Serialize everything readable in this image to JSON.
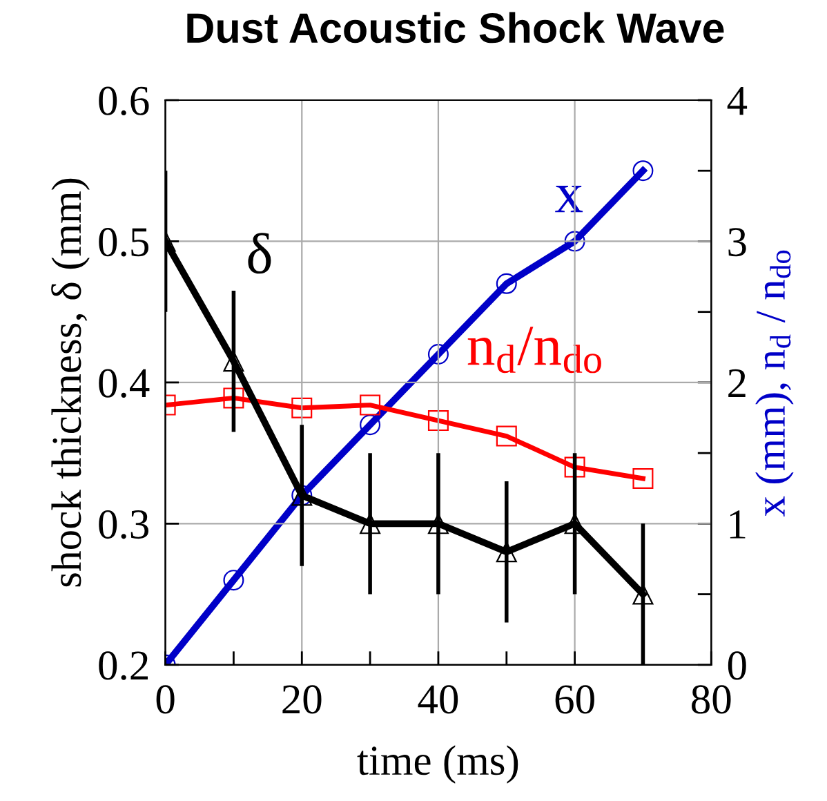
{
  "chart_data": {
    "type": "line",
    "title": "Dust Acoustic Shock Wave",
    "xlabel": "time (ms)",
    "ylabel": "shock thickness, δ (mm)",
    "y2label": "x (mm), n$_{d}$ / n$_{do}$",
    "x": [
      0,
      10,
      20,
      30,
      40,
      50,
      60,
      70
    ],
    "series": [
      {
        "name": "δ",
        "color": "#000000",
        "marker": "triangle",
        "values": [
          0.5,
          0.415,
          0.32,
          0.3,
          0.3,
          0.28,
          0.3,
          0.25
        ],
        "errors": [
          0.05,
          0.05,
          0.05,
          0.05,
          0.05,
          0.05,
          0.05,
          0.05
        ]
      },
      {
        "name": "x",
        "color": "#0000c8",
        "marker": "circle",
        "axis": "y2",
        "values": [
          0,
          0.6,
          1.2,
          1.7,
          2.2,
          2.7,
          3.0,
          3.5
        ]
      },
      {
        "name": "n$_{d}$/n$_{do}$",
        "color": "#ff0000",
        "marker": "square",
        "axis": "y2",
        "values": [
          1.84,
          1.89,
          1.82,
          1.84,
          1.73,
          1.62,
          1.4,
          1.32
        ]
      }
    ],
    "xlim": [
      0,
      80
    ],
    "xticks": [
      0,
      {
        "value": 10,
        "label": null
      },
      20,
      {
        "value": 30,
        "label": null
      },
      40,
      {
        "value": 50,
        "label": null
      },
      60,
      {
        "value": 70,
        "label": null
      },
      80
    ],
    "ylim": [
      0.2,
      0.6
    ],
    "yticks": [
      0.2,
      0.3,
      0.4,
      0.5,
      0.6
    ],
    "y2lim": [
      0,
      4
    ],
    "y2ticks": [
      0,
      {
        "value": 0.5,
        "label": null
      },
      1,
      {
        "value": 1.5,
        "label": null
      },
      2,
      {
        "value": 2.5,
        "label": null
      },
      3,
      {
        "value": 3.5,
        "label": null
      },
      4
    ],
    "grid": true,
    "legend": false
  }
}
